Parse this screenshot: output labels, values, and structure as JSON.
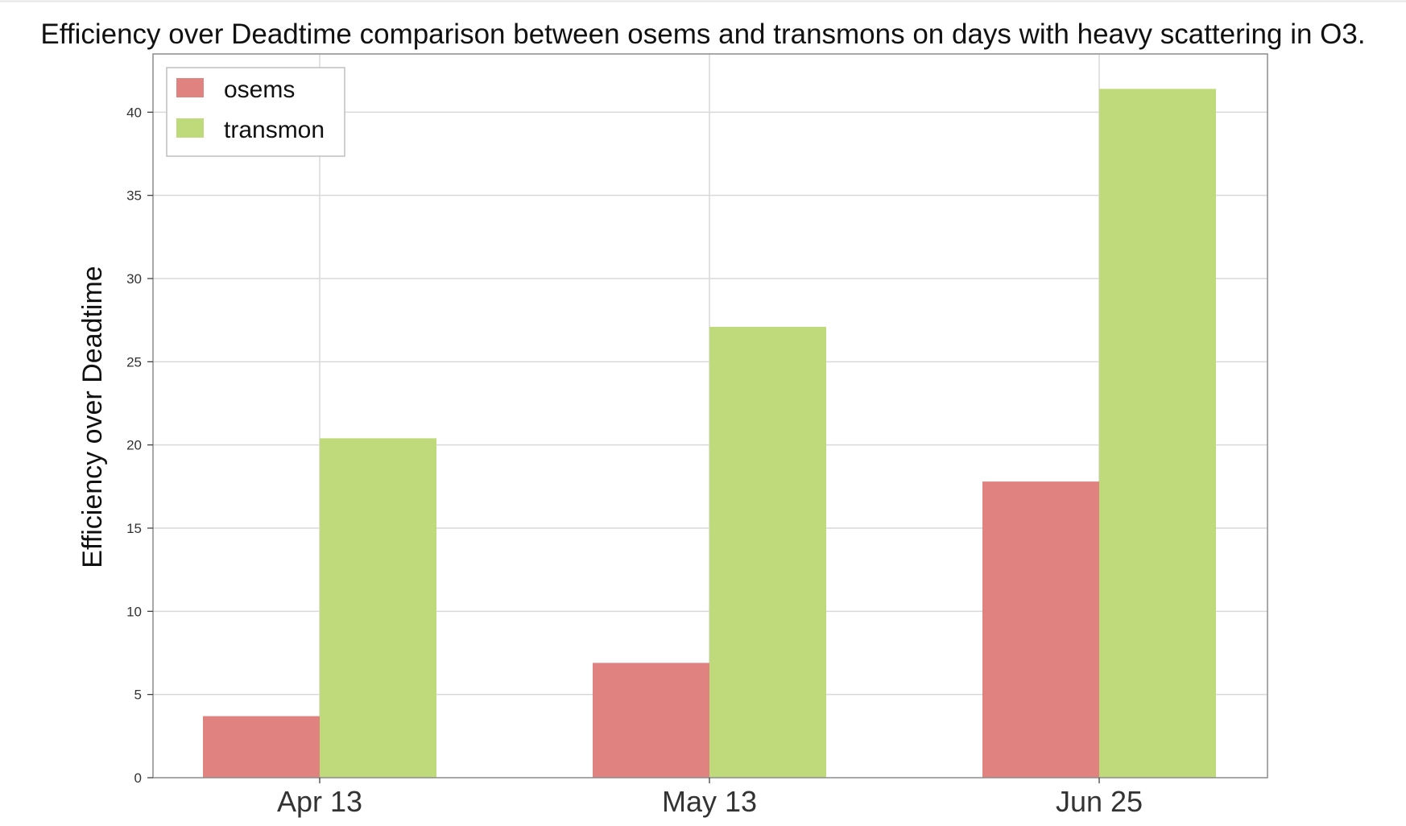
{
  "chart_data": {
    "type": "bar",
    "title": "Efficiency over Deadtime comparison between osems and transmons on days with heavy scattering in O3.",
    "xlabel": "",
    "ylabel": "Efficiency over Deadtime",
    "categories": [
      "Apr 13",
      "May 13",
      "Jun 25"
    ],
    "series": [
      {
        "name": "osems",
        "color": "#e0827f",
        "values": [
          3.7,
          6.9,
          17.8
        ]
      },
      {
        "name": "transmon",
        "color": "#bfda7b",
        "values": [
          20.4,
          27.1,
          41.4
        ]
      }
    ],
    "ylim": [
      0,
      43.5
    ],
    "yticks": [
      0,
      5,
      10,
      15,
      20,
      25,
      30,
      35,
      40
    ],
    "grid": true,
    "legend_position": "top-left"
  }
}
